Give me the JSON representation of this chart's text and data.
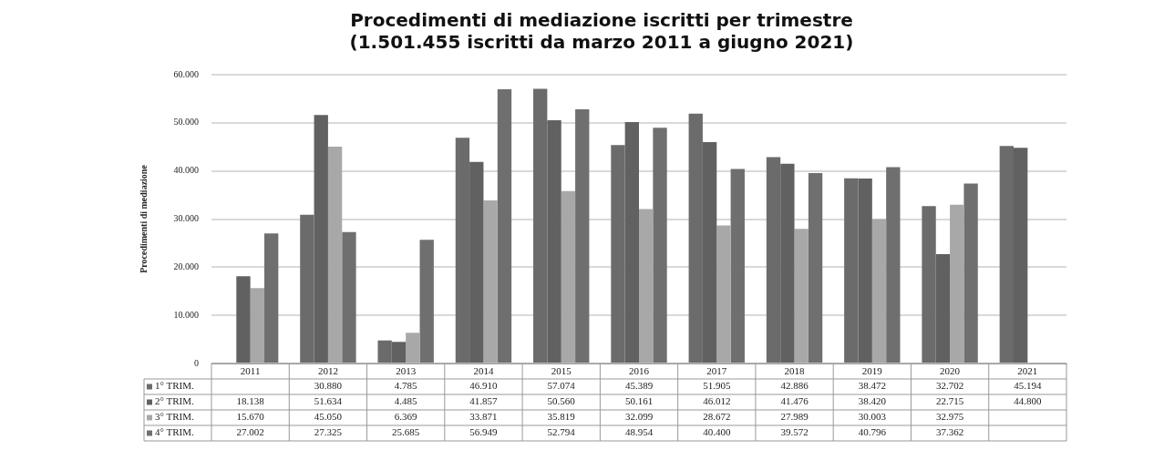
{
  "chart_data": {
    "type": "bar",
    "title": "Procedimenti di mediazione iscritti per trimestre",
    "subtitle": "(1.501.455 iscritti da marzo 2011 a giugno 2021)",
    "ylabel": "Procedimenti di mediazione",
    "categories": [
      "2011",
      "2012",
      "2013",
      "2014",
      "2015",
      "2016",
      "2017",
      "2018",
      "2019",
      "2020",
      "2021"
    ],
    "series": [
      {
        "name": "1° TRIM.",
        "color": "#6b6b6b",
        "values": [
          null,
          30880,
          4785,
          46910,
          57074,
          45389,
          51905,
          42886,
          38472,
          32702,
          45194
        ],
        "value_labels": [
          null,
          "30.880",
          "4.785",
          "46.910",
          "57.074",
          "45.389",
          "51.905",
          "42.886",
          "38.472",
          "32.702",
          "45.194"
        ]
      },
      {
        "name": "2° TRIM.",
        "color": "#616161",
        "values": [
          18138,
          51634,
          4485,
          41857,
          50560,
          50161,
          46012,
          41476,
          38420,
          22715,
          44800
        ],
        "value_labels": [
          "18.138",
          "51.634",
          "4.485",
          "41.857",
          "50.560",
          "50.161",
          "46.012",
          "41.476",
          "38.420",
          "22.715",
          "44.800"
        ]
      },
      {
        "name": "3° TRIM.",
        "color": "#a8a8a8",
        "values": [
          15670,
          45050,
          6369,
          33871,
          35819,
          32099,
          28672,
          27989,
          30003,
          32975,
          null
        ],
        "value_labels": [
          "15.670",
          "45.050",
          "6.369",
          "33.871",
          "35.819",
          "32.099",
          "28.672",
          "27.989",
          "30.003",
          "32.975",
          null
        ]
      },
      {
        "name": "4° TRIM.",
        "color": "#6f6f6f",
        "values": [
          27002,
          27325,
          25685,
          56949,
          52794,
          48954,
          40400,
          39572,
          40796,
          37362,
          null
        ],
        "value_labels": [
          "27.002",
          "27.325",
          "25.685",
          "56.949",
          "52.794",
          "48.954",
          "40.400",
          "39.572",
          "40.796",
          "37.362",
          null
        ]
      }
    ],
    "ylim": [
      0,
      60000
    ],
    "yticks": [
      0,
      {
        "value": 10000,
        "label": "10.000"
      },
      {
        "value": 20000,
        "label": "20.000"
      },
      {
        "value": 30000,
        "label": "30.000"
      },
      {
        "value": 40000,
        "label": "40.000"
      },
      {
        "value": 50000,
        "label": "50.000"
      },
      {
        "value": 60000,
        "label": "60.000"
      }
    ],
    "grid": "y",
    "legend": "bottom"
  }
}
